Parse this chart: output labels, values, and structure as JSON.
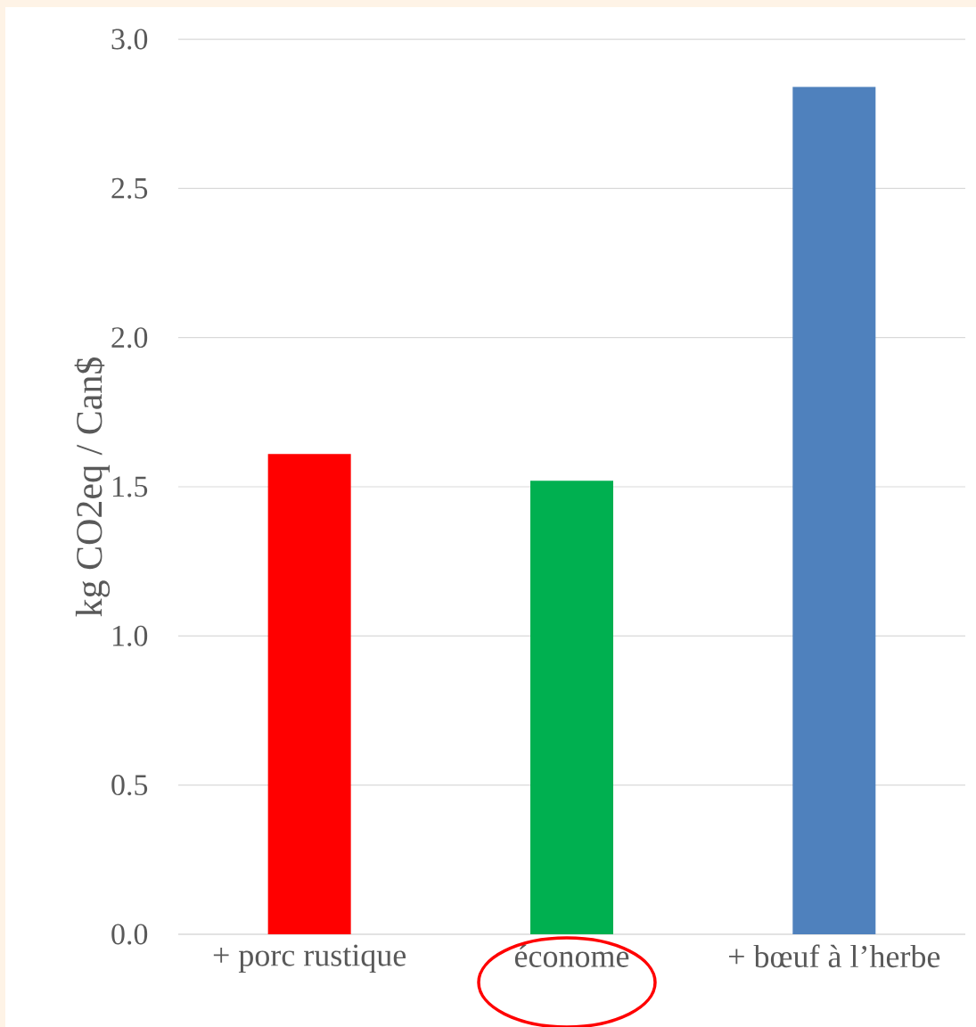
{
  "chart_data": {
    "type": "bar",
    "ylabel": "kg CO2eq / Can$",
    "categories": [
      "+ porc rustique",
      "économe",
      "+ bœuf à l’herbe"
    ],
    "values": [
      1.61,
      1.52,
      2.84
    ],
    "colors": [
      "#ff0000",
      "#00b050",
      "#4f81bd"
    ],
    "ylim": [
      0,
      3
    ],
    "yticks": [
      {
        "value": 0,
        "label": "0.0"
      },
      {
        "value": 0.5,
        "label": "0.5"
      },
      {
        "value": 1,
        "label": "1.0"
      },
      {
        "value": 1.5,
        "label": "1.5"
      },
      {
        "value": 2,
        "label": "2.0"
      },
      {
        "value": 2.5,
        "label": "2.5"
      },
      {
        "value": 3,
        "label": "3.0"
      }
    ],
    "grid": "y"
  }
}
